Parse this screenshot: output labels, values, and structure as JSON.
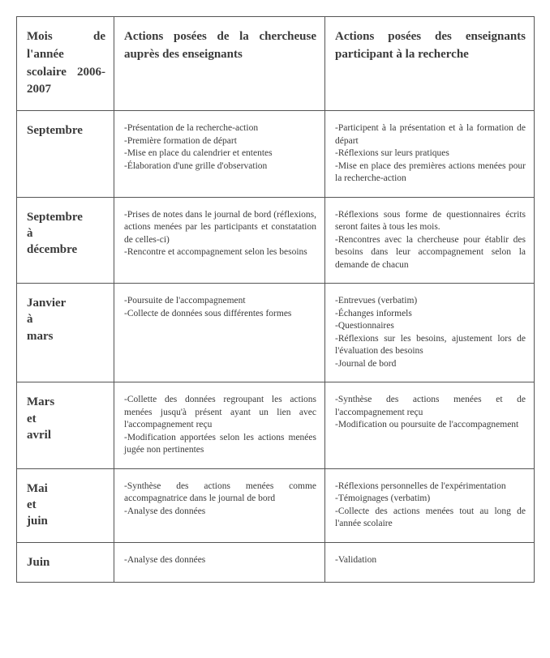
{
  "headers": {
    "col0": "Mois de l'année scolaire 2006-2007",
    "col1": "Actions posées de la chercheuse auprès des enseignants",
    "col2": "Actions posées des enseignants participant à la recherche"
  },
  "rows": [
    {
      "month": "Septembre",
      "col1": [
        "-Présentation de la recherche-action",
        "-Première formation de départ",
        "-Mise en place du calendrier et ententes",
        "-Élaboration d'une grille d'observation"
      ],
      "col2": [
        "-Participent à la présentation et à la formation de départ",
        "-Réflexions sur leurs pratiques",
        "-Mise en place des premières actions menées pour la recherche-action"
      ]
    },
    {
      "month": "Septembre à décembre",
      "col1": [
        "-Prises de notes dans le journal de bord (réflexions, actions menées par les participants et constatation de celles-ci)",
        "-Rencontre et accompagnement selon les besoins"
      ],
      "col2": [
        "-Réflexions sous forme de questionnaires écrits seront faites à tous les mois.",
        "-Rencontres avec la chercheuse pour établir des besoins dans leur accompagnement selon la demande de chacun"
      ]
    },
    {
      "month": "Janvier à mars",
      "col1": [
        "-Poursuite de l'accompagnement",
        "-Collecte de données sous différentes formes"
      ],
      "col2": [
        "-Entrevues (verbatim)",
        "-Échanges informels",
        "-Questionnaires",
        "-Réflexions sur les besoins, ajustement lors de l'évaluation des besoins",
        "-Journal de bord"
      ]
    },
    {
      "month": "Mars et avril",
      "col1": [
        "-Collette des données regroupant les actions menées jusqu'à présent ayant un lien avec l'accompagnement reçu",
        "-Modification apportées selon les actions menées jugée non pertinentes"
      ],
      "col2": [
        "-Synthèse des actions menées et de l'accompagnement reçu",
        "-Modification ou poursuite de l'accompagnement"
      ]
    },
    {
      "month": "Mai et juin",
      "col1": [
        "-Synthèse des actions menées comme accompagnatrice dans le journal de bord",
        "-Analyse des données"
      ],
      "col2": [
        "-Réflexions personnelles de l'expérimentation",
        "-Témoignages (verbatim)",
        "-Collecte des actions menées tout au long de l'année scolaire"
      ]
    },
    {
      "month": "Juin",
      "col1": [
        "-Analyse des données"
      ],
      "col2": [
        "-Validation"
      ]
    }
  ]
}
